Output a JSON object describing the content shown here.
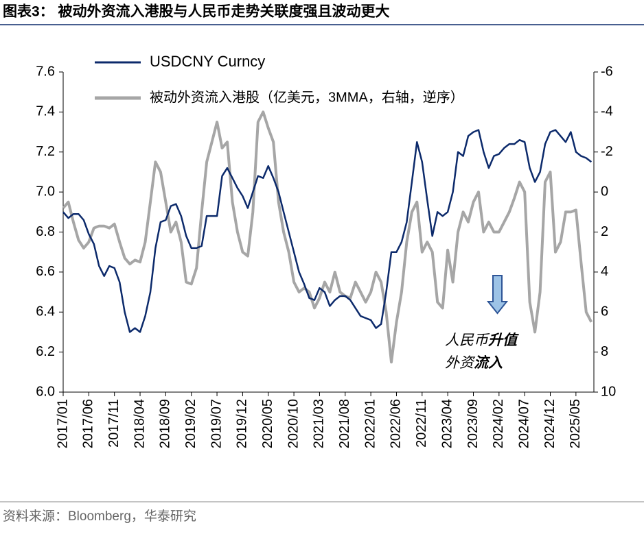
{
  "chart_data": {
    "type": "line",
    "title": "图表3： 被动外资流入港股与人民币走势关联度强且波动更大",
    "source": "资料来源：Bloomberg，华泰研究",
    "annotations": [
      {
        "normal": "人民币",
        "bold": "升值"
      },
      {
        "normal": "外资",
        "bold": "流入"
      }
    ],
    "categories": [
      "2017/01",
      null,
      null,
      null,
      null,
      "2017/06",
      null,
      null,
      null,
      null,
      "2017/11",
      null,
      null,
      null,
      null,
      "2018/04",
      null,
      null,
      null,
      null,
      "2018/09",
      null,
      null,
      null,
      null,
      "2019/02",
      null,
      null,
      null,
      null,
      "2019/07",
      null,
      null,
      null,
      null,
      "2019/12",
      null,
      null,
      null,
      null,
      "2020/05",
      null,
      null,
      null,
      null,
      "2020/10",
      null,
      null,
      null,
      null,
      "2021/03",
      null,
      null,
      null,
      null,
      "2021/08",
      null,
      null,
      null,
      null,
      "2022/01",
      null,
      null,
      null,
      null,
      "2022/06",
      null,
      null,
      null,
      null,
      "2022/11",
      null,
      null,
      null,
      null,
      "2023/04",
      null,
      null,
      null,
      null,
      "2023/09",
      null,
      null,
      null,
      null,
      "2024/02",
      null,
      null,
      null,
      null,
      "2024/07",
      null,
      null,
      null,
      null,
      "2024/12",
      null,
      null,
      null,
      null,
      "2025/05",
      null,
      null,
      null
    ],
    "series": [
      {
        "name": "USDCNY Curncy",
        "color": "#0c2a6b",
        "axis": "y",
        "values": [
          6.9,
          6.87,
          6.89,
          6.89,
          6.86,
          6.79,
          6.74,
          6.63,
          6.58,
          6.63,
          6.62,
          6.55,
          6.4,
          6.3,
          6.32,
          6.3,
          6.38,
          6.5,
          6.72,
          6.85,
          6.86,
          6.93,
          6.94,
          6.88,
          6.78,
          6.72,
          6.72,
          6.73,
          6.88,
          6.88,
          6.88,
          7.08,
          7.12,
          7.07,
          7.02,
          6.98,
          6.92,
          7.0,
          7.08,
          7.07,
          7.13,
          7.07,
          7.0,
          6.9,
          6.8,
          6.7,
          6.6,
          6.54,
          6.47,
          6.46,
          6.52,
          6.5,
          6.43,
          6.46,
          6.48,
          6.48,
          6.46,
          6.42,
          6.38,
          6.37,
          6.36,
          6.32,
          6.34,
          6.5,
          6.7,
          6.7,
          6.75,
          6.85,
          7.05,
          7.25,
          7.15,
          6.96,
          6.78,
          6.9,
          6.88,
          6.9,
          7.0,
          7.2,
          7.18,
          7.28,
          7.3,
          7.31,
          7.2,
          7.12,
          7.18,
          7.19,
          7.22,
          7.24,
          7.24,
          7.26,
          7.25,
          7.12,
          7.05,
          7.1,
          7.24,
          7.3,
          7.31,
          7.28,
          7.25,
          7.3,
          7.2,
          7.18,
          7.17,
          7.15
        ]
      },
      {
        "name": "被动外资流入港股（亿美元，3MMA，右轴，逆序）",
        "color": "#a6a6a6",
        "axis": "y2",
        "values": [
          0.8,
          0.5,
          1.5,
          2.4,
          2.8,
          2.5,
          1.8,
          1.7,
          1.7,
          1.8,
          1.6,
          2.5,
          3.3,
          3.6,
          3.4,
          3.5,
          2.5,
          0.5,
          -1.5,
          -1.0,
          0.5,
          2.0,
          1.5,
          2.5,
          4.5,
          4.6,
          3.8,
          1.0,
          -1.5,
          -2.5,
          -3.5,
          -2.2,
          -2.5,
          0.5,
          2.0,
          3.0,
          3.2,
          1.0,
          -3.5,
          -4.0,
          -3.2,
          -2.5,
          0.5,
          2.0,
          3.0,
          4.5,
          5.0,
          4.8,
          5.0,
          5.8,
          5.3,
          4.5,
          5.0,
          4.0,
          5.0,
          5.2,
          5.3,
          4.5,
          5.0,
          5.5,
          5.0,
          4.0,
          4.5,
          6.0,
          8.5,
          6.5,
          5.0,
          2.5,
          1.0,
          0.5,
          3.0,
          2.5,
          3.0,
          5.5,
          5.8,
          2.9,
          4.5,
          2.0,
          1.0,
          1.5,
          0.5,
          0.0,
          2.0,
          1.5,
          2.0,
          2.0,
          1.5,
          1.0,
          0.3,
          -0.5,
          0.0,
          5.5,
          7.0,
          5.0,
          -0.5,
          -1.0,
          3.0,
          2.5,
          1.0,
          1.0,
          0.9,
          3.5,
          6.0,
          6.5
        ]
      }
    ],
    "ylim": [
      6.0,
      7.6
    ],
    "yticks": [
      {
        "value": 6.0,
        "label": "6.0"
      },
      {
        "value": 6.2,
        "label": "6.2"
      },
      {
        "value": 6.4,
        "label": "6.4"
      },
      {
        "value": 6.6,
        "label": "6.6"
      },
      {
        "value": 6.8,
        "label": "6.8"
      },
      {
        "value": 7.0,
        "label": "7.0"
      },
      {
        "value": 7.2,
        "label": "7.2"
      },
      {
        "value": 7.4,
        "label": "7.4"
      },
      {
        "value": 7.6,
        "label": "7.6"
      }
    ],
    "y2lim": [
      -6,
      10
    ],
    "y2_inverted": true,
    "y2ticks": [
      -6,
      -4,
      -2,
      0,
      2,
      4,
      6,
      8,
      10
    ],
    "grid": false
  }
}
